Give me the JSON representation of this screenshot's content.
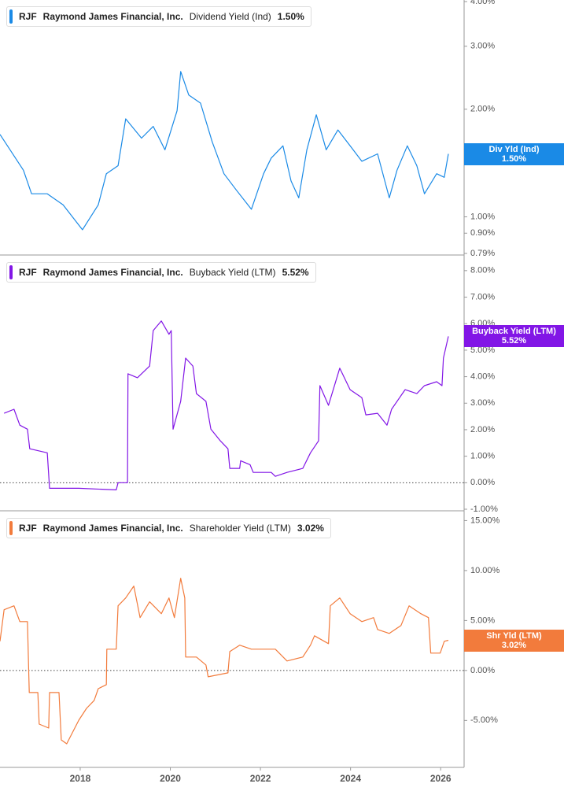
{
  "chart_data": [
    {
      "type": "line",
      "ticker": "RJF",
      "company": "Raymond James Financial, Inc.",
      "value_label": "1.50%",
      "tag_label": "Div Yld (Ind)",
      "yscale": "log",
      "x": [
        2016.22,
        2016.74,
        2016.92,
        2017.27,
        2017.62,
        2018.05,
        2018.4,
        2018.58,
        2018.84,
        2019.01,
        2019.36,
        2019.62,
        2019.88,
        2020.15,
        2020.23,
        2020.41,
        2020.67,
        2020.93,
        2021.19,
        2021.46,
        2021.8,
        2022.07,
        2022.24,
        2022.5,
        2022.68,
        2022.85,
        2023.03,
        2023.24,
        2023.46,
        2023.72,
        2023.99,
        2024.25,
        2024.6,
        2024.86,
        2025.03,
        2025.26,
        2025.47,
        2025.64,
        2025.91,
        2026.08,
        2026.17
      ],
      "series": [
        {
          "name": "Dividend Yield (Ind)",
          "color": "#1a8ae6",
          "values": [
            1.7,
            1.35,
            1.16,
            1.16,
            1.08,
            0.92,
            1.08,
            1.32,
            1.39,
            1.88,
            1.66,
            1.79,
            1.54,
            1.98,
            2.55,
            2.19,
            2.08,
            1.62,
            1.32,
            1.19,
            1.05,
            1.32,
            1.46,
            1.58,
            1.26,
            1.13,
            1.54,
            1.93,
            1.54,
            1.75,
            1.58,
            1.43,
            1.5,
            1.13,
            1.35,
            1.58,
            1.39,
            1.16,
            1.32,
            1.29,
            1.5
          ]
        }
      ],
      "xlim": [
        2016.22,
        2026.52
      ],
      "ylim": [
        0.79,
        4.0
      ],
      "yticks": [
        {
          "value": 4,
          "label": "4.00%"
        },
        {
          "value": 3,
          "label": "3.00%"
        },
        {
          "value": 2,
          "label": "2.00%"
        },
        {
          "value": 1,
          "label": "1.00%"
        },
        {
          "value": 0.9,
          "label": "0.90%"
        },
        {
          "value": 0.79,
          "label": "0.79%"
        }
      ]
    },
    {
      "type": "line",
      "ticker": "RJF",
      "company": "Raymond James Financial, Inc.",
      "value_label": "5.52%",
      "tag_label": "Buyback Yield (LTM)",
      "x": [
        2016.31,
        2016.53,
        2016.66,
        2016.83,
        2016.88,
        2017.27,
        2017.32,
        2017.97,
        2018.8,
        2018.84,
        2019.05,
        2019.06,
        2019.27,
        2019.54,
        2019.62,
        2019.8,
        2019.97,
        2020.02,
        2020.06,
        2020.23,
        2020.34,
        2020.5,
        2020.58,
        2020.79,
        2020.9,
        2021.11,
        2021.28,
        2021.32,
        2021.54,
        2021.56,
        2021.77,
        2021.84,
        2022.24,
        2022.33,
        2022.59,
        2022.94,
        2023.11,
        2023.29,
        2023.32,
        2023.51,
        2023.76,
        2023.99,
        2024.25,
        2024.34,
        2024.6,
        2024.81,
        2024.91,
        2025.21,
        2025.47,
        2025.64,
        2025.91,
        2026.03,
        2026.06,
        2026.17
      ],
      "series": [
        {
          "name": "Buyback Yield (LTM)",
          "color": "#8216e6",
          "values": [
            2.62,
            2.77,
            2.17,
            2.02,
            1.28,
            1.13,
            -0.21,
            -0.21,
            -0.27,
            0,
            0,
            4.11,
            3.96,
            4.4,
            5.74,
            6.1,
            5.6,
            5.74,
            2.02,
            3.07,
            4.7,
            4.4,
            3.36,
            3.07,
            2.02,
            1.58,
            1.28,
            0.54,
            0.54,
            0.83,
            0.68,
            0.39,
            0.39,
            0.24,
            0.39,
            0.54,
            1.13,
            1.58,
            3.66,
            2.92,
            4.32,
            3.51,
            3.21,
            2.56,
            2.62,
            2.17,
            2.77,
            3.51,
            3.36,
            3.66,
            3.81,
            3.66,
            4.7,
            5.52
          ]
        }
      ],
      "xlim": [
        2016.22,
        2026.52
      ],
      "ylim": [
        -1,
        8.5
      ],
      "yticks": [
        {
          "value": 8,
          "label": "8.00%"
        },
        {
          "value": 7,
          "label": "7.00%"
        },
        {
          "value": 6,
          "label": "6.00%"
        },
        {
          "value": 5,
          "label": "5.00%"
        },
        {
          "value": 4,
          "label": "4.00%"
        },
        {
          "value": 3,
          "label": "3.00%"
        },
        {
          "value": 2,
          "label": "2.00%"
        },
        {
          "value": 1,
          "label": "1.00%"
        },
        {
          "value": 0,
          "label": "0.00%"
        },
        {
          "value": -1,
          "label": "-1.00%"
        }
      ]
    },
    {
      "type": "line",
      "ticker": "RJF",
      "company": "Raymond James Financial, Inc.",
      "value_label": "3.02%",
      "tag_label": "Shr Yld (LTM)",
      "x": [
        2016.22,
        2016.31,
        2016.53,
        2016.66,
        2016.83,
        2016.87,
        2017.06,
        2017.09,
        2017.3,
        2017.32,
        2017.53,
        2017.58,
        2017.7,
        2017.97,
        2018.14,
        2018.31,
        2018.4,
        2018.58,
        2018.59,
        2018.8,
        2018.84,
        2019.01,
        2019.19,
        2019.33,
        2019.54,
        2019.8,
        2019.97,
        2020.09,
        2020.23,
        2020.32,
        2020.34,
        2020.58,
        2020.79,
        2020.84,
        2021.28,
        2021.32,
        2021.54,
        2021.8,
        2022.33,
        2022.59,
        2022.94,
        2023.11,
        2023.2,
        2023.51,
        2023.55,
        2023.76,
        2023.99,
        2024.25,
        2024.51,
        2024.6,
        2024.86,
        2025.12,
        2025.3,
        2025.56,
        2025.73,
        2025.78,
        2025.99,
        2026.08,
        2026.17
      ],
      "series": [
        {
          "name": "Shareholder Yield (LTM)",
          "color": "#f27b3c",
          "values": [
            2.92,
            6.08,
            6.47,
            4.89,
            4.89,
            -2.21,
            -2.21,
            -5.37,
            -5.76,
            -2.21,
            -2.21,
            -6.95,
            -7.34,
            -4.97,
            -3.79,
            -3.0,
            -1.82,
            -1.42,
            2.13,
            2.13,
            6.47,
            7.26,
            8.45,
            5.29,
            6.87,
            5.68,
            7.26,
            5.29,
            9.23,
            7.26,
            1.34,
            1.34,
            0.55,
            -0.63,
            -0.24,
            1.89,
            2.53,
            2.13,
            2.13,
            0.95,
            1.34,
            2.53,
            3.47,
            2.68,
            6.47,
            7.26,
            5.68,
            4.89,
            5.29,
            4.1,
            3.71,
            4.5,
            6.47,
            5.68,
            5.29,
            1.74,
            1.74,
            2.92,
            3.02
          ]
        }
      ],
      "xlim": [
        2016.22,
        2026.52
      ],
      "ylim": [
        -9.7,
        15.9
      ],
      "yticks": [
        {
          "value": 15,
          "label": "15.00%"
        },
        {
          "value": 10,
          "label": "10.00%"
        },
        {
          "value": 5,
          "label": "5.00%"
        },
        {
          "value": 0,
          "label": "0.00%"
        },
        {
          "value": -5,
          "label": "-5.00%"
        }
      ],
      "xticks": [
        2018,
        2020,
        2022,
        2024,
        2026
      ]
    }
  ]
}
